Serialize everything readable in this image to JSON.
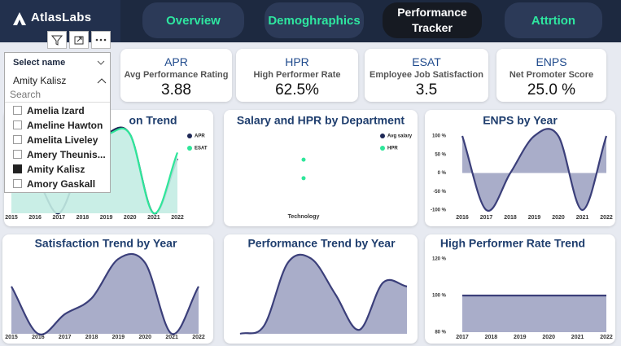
{
  "header": {
    "logo": "AtlasLabs",
    "tabs": [
      {
        "label": "Overview",
        "active": false
      },
      {
        "label": "Demoghraphics",
        "active": false
      },
      {
        "label": "Performance Tracker",
        "active": true
      },
      {
        "label": "Attrtion",
        "active": false
      }
    ]
  },
  "slicer": {
    "title": "Select name",
    "selected": "Amity Kalisz",
    "search": "Search",
    "items": [
      {
        "label": "Amelia Izard",
        "checked": false
      },
      {
        "label": "Ameline Hawton",
        "checked": false
      },
      {
        "label": "Amelita Liveley",
        "checked": false
      },
      {
        "label": "Amery Theunis...",
        "checked": false
      },
      {
        "label": "Amity Kalisz",
        "checked": true
      },
      {
        "label": "Amory Gaskall",
        "checked": false
      }
    ]
  },
  "kpis": [
    {
      "title": "APR",
      "subtitle": "Avg Performance Rating",
      "value": "3.88"
    },
    {
      "title": "HPR",
      "subtitle": "High Performer Rate",
      "value": "62.5%"
    },
    {
      "title": "ESAT",
      "subtitle": "Employee Job Satisfaction",
      "value": "3.5"
    },
    {
      "title": "ENPS",
      "subtitle": "Net Promoter Score",
      "value": "25.0 %"
    }
  ],
  "charts": [
    {
      "type": "line",
      "title": "on Trend",
      "categories": [
        "2015",
        "2016",
        "2017",
        "2018",
        "2019",
        "2020",
        "2021",
        "2022"
      ],
      "series": [
        {
          "name": "APR",
          "color": "#1e2856",
          "values": [
            3.6,
            3.6,
            3.0,
            3.9,
            4.3,
            4.3,
            3.0,
            3.9
          ]
        },
        {
          "name": "ESAT",
          "color": "#2ee69a",
          "area_color": "#c3ece3",
          "values": [
            3.6,
            3.6,
            4.3,
            4.3,
            4.3,
            4.3,
            3.0,
            4.0
          ]
        }
      ]
    },
    {
      "type": "scatter",
      "title": "Salary and HPR by Department",
      "categories": [
        "Technology"
      ],
      "series": [
        {
          "name": "Avg salary",
          "color": "#1e2856",
          "values": [
            0.62
          ]
        },
        {
          "name": "HPR",
          "color": "#2ee69a",
          "values": [
            0.38
          ]
        }
      ]
    },
    {
      "type": "area",
      "title": "ENPS by Year",
      "categories": [
        "2016",
        "2017",
        "2018",
        "2019",
        "2020",
        "2021",
        "2022"
      ],
      "values": [
        100,
        -100,
        0,
        100,
        100,
        -100,
        100
      ],
      "color": "#3b3f7a",
      "area_color": "#a9adc9",
      "ylim": [
        -100,
        100
      ],
      "yticks": [
        {
          "value": 100,
          "label": "100 %"
        },
        {
          "value": 50,
          "label": "50 %"
        },
        {
          "value": 0,
          "label": "0 %"
        },
        {
          "value": -50,
          "label": "-50 %"
        },
        {
          "value": -100,
          "label": "-100 %"
        }
      ]
    },
    {
      "type": "area",
      "title": "Satisfaction Trend by Year",
      "categories": [
        "2015",
        "2016",
        "2017",
        "2018",
        "2019",
        "2020",
        "2021",
        "2022"
      ],
      "values": [
        3.6,
        2.4,
        2.9,
        3.3,
        4.3,
        4.2,
        2.4,
        3.6
      ],
      "color": "#3b3f7a",
      "area_color": "#a9adc9"
    },
    {
      "type": "area",
      "title": "Performance Trend by Year",
      "categories": [
        null,
        null,
        null,
        null,
        null,
        null,
        null,
        null
      ],
      "values": [
        2.0,
        2.2,
        3.8,
        3.9,
        3.0,
        2.1,
        3.3,
        3.2
      ],
      "color": "#3b3f7a",
      "area_color": "#a9adc9"
    },
    {
      "type": "area",
      "title": "High Performer Rate Trend",
      "categories": [
        "2017",
        "2018",
        "2019",
        "2020",
        "2021",
        "2022"
      ],
      "values": [
        100,
        100,
        100,
        100,
        100,
        100
      ],
      "color": "#3b3f7a",
      "area_color": "#a9adc9",
      "ylim": [
        80,
        120
      ],
      "yticks": [
        {
          "value": 120,
          "label": "120 %"
        },
        {
          "value": 100,
          "label": "100 %"
        },
        {
          "value": 80,
          "label": "80 %"
        }
      ]
    }
  ]
}
